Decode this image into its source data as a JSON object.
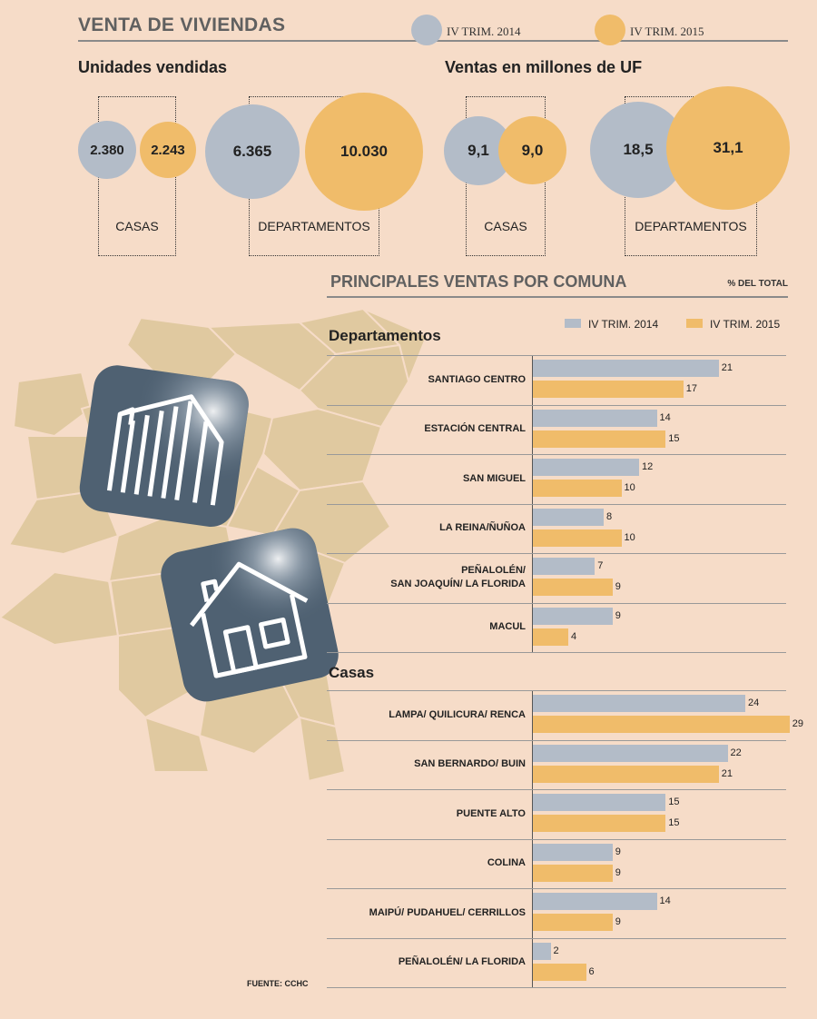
{
  "header": {
    "title": "VENTA DE VIVIENDAS",
    "legend_2014": "IV TRIM. 2014",
    "legend_2015": "IV TRIM. 2015"
  },
  "units": {
    "title": "Unidades vendidas",
    "casas_2014": "2.380",
    "casas_2015": "2.243",
    "deptos_2014": "6.365",
    "deptos_2015": "10.030",
    "casas_label": "CASAS",
    "deptos_label": "DEPARTAMENTOS"
  },
  "uf": {
    "title": "Ventas en millones de UF",
    "casas_2014": "9,1",
    "casas_2015": "9,0",
    "deptos_2014": "18,5",
    "deptos_2015": "31,1",
    "casas_label": "CASAS",
    "deptos_label": "DEPARTAMENTOS"
  },
  "comuna": {
    "title": "PRINCIPALES VENTAS POR COMUNA",
    "pct_label": "% DEL TOTAL",
    "legend_2014": "IV TRIM. 2014",
    "legend_2015": "IV TRIM. 2015"
  },
  "source": "FUENTE: CCHC",
  "colors": {
    "trim2014": "#b3bcc8",
    "trim2015": "#f0bc6a",
    "background": "#f6dcc8",
    "map": "#e0c9a0",
    "icon": "#4f6172"
  },
  "icons": [
    "building-icon",
    "house-icon"
  ],
  "chart_data": [
    {
      "type": "bar",
      "title": "Unidades vendidas",
      "categories": [
        "CASAS",
        "DEPARTAMENTOS"
      ],
      "series": [
        {
          "name": "IV TRIM. 2014",
          "values": [
            2380,
            6365
          ]
        },
        {
          "name": "IV TRIM. 2015",
          "values": [
            2243,
            10030
          ]
        }
      ]
    },
    {
      "type": "bar",
      "title": "Ventas en millones de UF",
      "categories": [
        "CASAS",
        "DEPARTAMENTOS"
      ],
      "series": [
        {
          "name": "IV TRIM. 2014",
          "values": [
            9.1,
            18.5
          ]
        },
        {
          "name": "IV TRIM. 2015",
          "values": [
            9.0,
            31.1
          ]
        }
      ]
    },
    {
      "type": "bar",
      "title": "Departamentos",
      "orientation": "horizontal",
      "categories": [
        "SANTIAGO CENTRO",
        "ESTACIÓN CENTRAL",
        "SAN MIGUEL",
        "LA REINA/ÑUÑOA",
        "PEÑALOLÉN/\nSAN JOAQUÍN/ LA FLORIDA",
        "MACUL"
      ],
      "series": [
        {
          "name": "IV TRIM. 2014",
          "values": [
            21,
            14,
            12,
            8,
            7,
            9
          ]
        },
        {
          "name": "IV TRIM. 2015",
          "values": [
            17,
            15,
            10,
            10,
            9,
            4
          ]
        }
      ]
    },
    {
      "type": "bar",
      "title": "Casas",
      "orientation": "horizontal",
      "categories": [
        "LAMPA/ QUILICURA/ RENCA",
        "SAN BERNARDO/ BUIN",
        "PUENTE ALTO",
        "COLINA",
        "MAIPÚ/ PUDAHUEL/ CERRILLOS",
        "PEÑALOLÉN/ LA FLORIDA"
      ],
      "series": [
        {
          "name": "IV TRIM. 2014",
          "values": [
            24,
            22,
            15,
            9,
            14,
            2
          ]
        },
        {
          "name": "IV TRIM. 2015",
          "values": [
            29,
            21,
            15,
            9,
            9,
            6
          ]
        }
      ]
    }
  ]
}
